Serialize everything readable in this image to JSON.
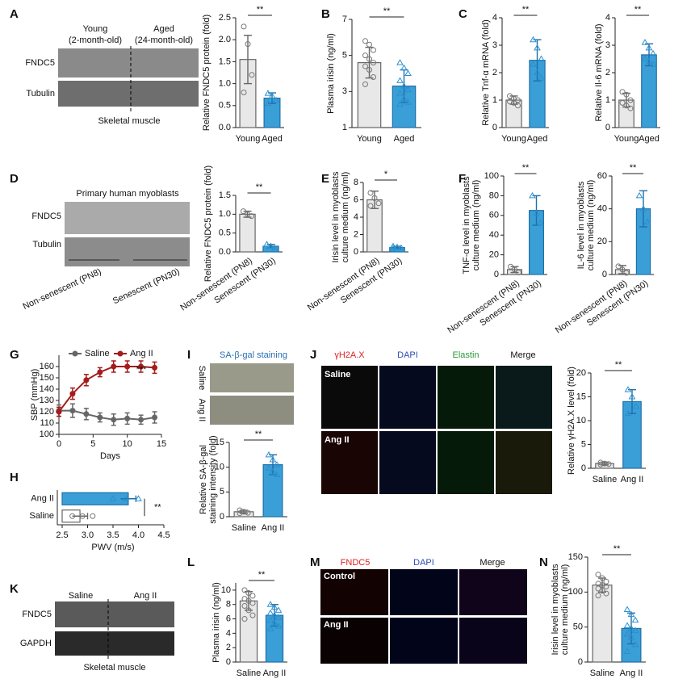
{
  "panel_letters": [
    "A",
    "B",
    "C",
    "D",
    "E",
    "F",
    "G",
    "H",
    "I",
    "J",
    "K",
    "L",
    "M",
    "N"
  ],
  "image_labels": {
    "a": [
      "Young",
      "(2-month-old)",
      "Aged",
      "(24-month-old)",
      "FNDC5",
      "Tubulin",
      "Skeletal muscle"
    ],
    "d": [
      "Primary human myoblasts",
      "FNDC5",
      "Tubulin",
      "Non-senescent (PN8)",
      "Senescent (PN30)"
    ],
    "i": [
      "SA-β-gal staining",
      "Saline",
      "Ang II"
    ],
    "j": [
      "γH2A.X",
      "DAPI",
      "Elastin",
      "Merge",
      "Saline",
      "Ang II"
    ],
    "k": [
      "Saline",
      "Ang II",
      "FNDC5",
      "GAPDH",
      "Skeletal muscle"
    ],
    "m": [
      "FNDC5",
      "DAPI",
      "Merge",
      "Control",
      "Ang II"
    ]
  },
  "chart_data": [
    {
      "type": "bar",
      "ylabel": "Relative FNDC5 protein (fold)",
      "categories": [
        "Young",
        "Aged"
      ],
      "values": [
        1.55,
        0.67
      ],
      "errors": [
        0.55,
        0.12
      ],
      "points": [
        [
          2.3,
          1.9,
          1.2,
          0.8
        ],
        [
          0.78,
          0.72,
          0.62,
          0.55
        ]
      ],
      "colors": [
        "#e8e8e8",
        "#3a9fd6"
      ],
      "ylim": [
        0,
        2.5
      ],
      "yticks": [
        {
          "value": 0,
          "label": "0.0"
        },
        0.5,
        {
          "value": 1,
          "label": "1.0"
        },
        1.5,
        {
          "value": 2,
          "label": "2.0"
        },
        2.5
      ],
      "annotation": "**"
    },
    {
      "type": "bar",
      "ylabel": "Plasma irisin (ng/ml)",
      "categories": [
        "Young",
        "Aged"
      ],
      "values": [
        4.6,
        3.3
      ],
      "errors": [
        0.85,
        0.9
      ],
      "points": [
        [
          5.8,
          5.6,
          5.3,
          5.0,
          4.8,
          4.6,
          4.4,
          4.2,
          3.8,
          3.4
        ],
        [
          4.6,
          4.3,
          4.0,
          3.6,
          3.3,
          3.1,
          2.9,
          2.6,
          2.4,
          2.3
        ]
      ],
      "colors": [
        "#e8e8e8",
        "#3a9fd6"
      ],
      "ylim": [
        1,
        7
      ],
      "yticks": [
        1,
        3,
        5,
        7
      ],
      "annotation": "**"
    },
    {
      "type": "bar",
      "ylabel": "Relative Tnf-α mRNA (fold)",
      "categories": [
        "Young",
        "Aged"
      ],
      "values": [
        1.0,
        2.45
      ],
      "errors": [
        0.15,
        0.75
      ],
      "points": [
        [
          1.15,
          1.05,
          1.0,
          0.95,
          0.9,
          0.8
        ],
        [
          3.2,
          2.9,
          2.5,
          2.3,
          2.0,
          1.8
        ]
      ],
      "colors": [
        "#e8e8e8",
        "#3a9fd6"
      ],
      "ylim": [
        0,
        4
      ],
      "yticks": [
        0,
        1,
        2,
        3,
        4
      ],
      "annotation": "**"
    },
    {
      "type": "bar",
      "ylabel": "Relative Il-6 mRNA (fold)",
      "categories": [
        "Young",
        "Aged"
      ],
      "values": [
        1.0,
        2.65
      ],
      "errors": [
        0.25,
        0.4
      ],
      "points": [
        [
          1.3,
          1.2,
          1.0,
          0.9,
          0.8,
          0.7
        ],
        [
          3.1,
          2.9,
          2.7,
          2.5,
          2.4,
          2.3
        ]
      ],
      "colors": [
        "#e8e8e8",
        "#3a9fd6"
      ],
      "ylim": [
        0,
        4
      ],
      "yticks": [
        0,
        1,
        2,
        3,
        4
      ],
      "annotation": "**"
    },
    {
      "type": "bar",
      "ylabel": "Relative FNDC5 protein (fold)",
      "categories": [
        "Non-senescent (PN8)",
        "Senescent (PN30)"
      ],
      "values": [
        1.0,
        0.15
      ],
      "errors": [
        0.08,
        0.05
      ],
      "points": [
        [
          1.08,
          1.0,
          0.95
        ],
        [
          0.2,
          0.15,
          0.1
        ]
      ],
      "colors": [
        "#e8e8e8",
        "#3a9fd6"
      ],
      "ylim": [
        0,
        1.5
      ],
      "yticks": [
        {
          "value": 0,
          "label": "0.0"
        },
        0.5,
        {
          "value": 1,
          "label": "1.0"
        },
        1.5
      ],
      "annotation": "**"
    },
    {
      "type": "bar",
      "ylabel": [
        "Irisin level in myoblasts",
        "culture medium (ng/ml)"
      ],
      "categories": [
        "Non-senescent (PN8)",
        "Senescent (PN30)"
      ],
      "values": [
        6.0,
        0.5
      ],
      "errors": [
        1.0,
        0.15
      ],
      "points": [
        [
          6.8,
          6.2,
          5.6,
          5.3
        ],
        [
          0.65,
          0.55,
          0.45,
          0.4
        ]
      ],
      "colors": [
        "#e8e8e8",
        "#3a9fd6"
      ],
      "ylim": [
        0,
        8
      ],
      "yticks": [
        0,
        2,
        4,
        6,
        8
      ],
      "annotation": "*"
    },
    {
      "type": "bar",
      "ylabel": [
        "TNF-α level in myoblasts",
        "culture medium (ng/ml)"
      ],
      "categories": [
        "Non-senescent (PN8)",
        "Senescent (PN30)"
      ],
      "values": [
        5,
        65
      ],
      "errors": [
        3,
        15
      ],
      "points": [
        [
          8,
          5,
          2
        ],
        [
          80,
          62,
          52
        ]
      ],
      "colors": [
        "#e8e8e8",
        "#3a9fd6"
      ],
      "ylim": [
        0,
        100
      ],
      "yticks": [
        0,
        20,
        40,
        60,
        80,
        100
      ],
      "annotation": "**"
    },
    {
      "type": "bar",
      "ylabel": [
        "IL-6 level in myoblasts",
        "culture medium (ng/ml)"
      ],
      "categories": [
        "Non-senescent (PN8)",
        "Senescent (PN30)"
      ],
      "values": [
        3,
        40
      ],
      "errors": [
        2.5,
        11
      ],
      "points": [
        [
          5,
          3,
          1
        ],
        [
          48,
          40,
          32
        ]
      ],
      "colors": [
        "#e8e8e8",
        "#3a9fd6"
      ],
      "ylim": [
        0,
        60
      ],
      "yticks": [
        0,
        20,
        40,
        60
      ],
      "annotation": "**"
    },
    {
      "type": "line",
      "ylabel": "SBP (mmHg)",
      "xlabel": "Days",
      "x": [
        0,
        2,
        4,
        6,
        8,
        10,
        12,
        14
      ],
      "series": [
        {
          "name": "Saline",
          "color": "#666666",
          "values": [
            121,
            121,
            118,
            115,
            113,
            114,
            113,
            115
          ],
          "errors": [
            5,
            6,
            5,
            4,
            5,
            5,
            4,
            5
          ]
        },
        {
          "name": "Ang II",
          "color": "#a51c1c",
          "values": [
            120,
            136,
            148,
            155,
            160,
            160,
            160,
            159
          ],
          "errors": [
            4,
            5,
            5,
            4,
            5,
            5,
            5,
            5
          ]
        }
      ],
      "xlim": [
        0,
        15
      ],
      "xticks": [
        0,
        5,
        10,
        15
      ],
      "ylim": [
        100,
        170
      ],
      "yticks": [
        100,
        110,
        120,
        130,
        140,
        150,
        160
      ],
      "annotation": "***"
    },
    {
      "type": "hbar",
      "xlabel": "PWV (m/s)",
      "categories": [
        "Ang II",
        "Saline"
      ],
      "values": [
        3.8,
        2.85
      ],
      "errors": [
        0.15,
        0.15
      ],
      "points": [
        [
          3.5,
          3.75,
          4.0
        ],
        [
          2.7,
          2.9,
          3.1
        ]
      ],
      "colors": [
        "#3a9fd6",
        "#ffffff"
      ],
      "xlim": [
        2.5,
        4.5
      ],
      "xticks": [
        2.5,
        {
          "value": 3,
          "label": "3.0"
        },
        3.5,
        {
          "value": 4,
          "label": "4.0"
        },
        4.5
      ],
      "annotation": "**"
    },
    {
      "type": "bar",
      "ylabel": [
        "Relative SA-β-gal",
        "staining intensity (fold)"
      ],
      "categories": [
        "Saline",
        "Ang II"
      ],
      "values": [
        1.0,
        10.5
      ],
      "errors": [
        0.3,
        2.0
      ],
      "points": [
        [
          1.3,
          1.0,
          0.8,
          0.7
        ],
        [
          12.5,
          11.5,
          10.5,
          9.8,
          9,
          8.5
        ]
      ],
      "colors": [
        "#e8e8e8",
        "#3a9fd6"
      ],
      "ylim": [
        0,
        15
      ],
      "yticks": [
        0,
        5,
        10,
        15
      ],
      "annotation": "**"
    },
    {
      "type": "bar",
      "ylabel": "Relative γH2A.X level (fold)",
      "categories": [
        "Saline",
        "Ang II"
      ],
      "values": [
        1.0,
        14
      ],
      "errors": [
        0.3,
        2.5
      ],
      "points": [
        [
          1.2,
          1.0,
          0.9,
          0.8
        ],
        [
          16.5,
          15,
          13,
          11.5
        ]
      ],
      "colors": [
        "#e8e8e8",
        "#3a9fd6"
      ],
      "ylim": [
        0,
        20
      ],
      "yticks": [
        0,
        5,
        10,
        15,
        20
      ],
      "annotation": "**"
    },
    {
      "type": "bar",
      "ylabel": "Plasma irisin (ng/ml)",
      "categories": [
        "Saline",
        "Ang II"
      ],
      "values": [
        8.5,
        6.5
      ],
      "errors": [
        1.3,
        1.5
      ],
      "points": [
        [
          10,
          9.6,
          9.2,
          8.8,
          8.5,
          8.2,
          7.8,
          7.2,
          6.5,
          6.0
        ],
        [
          8.0,
          7.6,
          7.2,
          6.8,
          6.5,
          6.2,
          5.8,
          5.4,
          5.0,
          4.6
        ]
      ],
      "colors": [
        "#e8e8e8",
        "#3a9fd6"
      ],
      "ylim": [
        0,
        11
      ],
      "yticks": [
        0,
        2,
        4,
        6,
        8,
        10
      ],
      "annotation": "**"
    },
    {
      "type": "bar",
      "ylabel": [
        "Irisin level in myoblasts",
        "culture medium (ng/ml)"
      ],
      "categories": [
        "Saline",
        "Ang II"
      ],
      "values": [
        110,
        48
      ],
      "errors": [
        10,
        22
      ],
      "points": [
        [
          125,
          120,
          115,
          112,
          110,
          108,
          105,
          102,
          98,
          95
        ],
        [
          75,
          68,
          60,
          52,
          48,
          45,
          40,
          35,
          25,
          15
        ]
      ],
      "colors": [
        "#e8e8e8",
        "#3a9fd6"
      ],
      "ylim": [
        0,
        150
      ],
      "yticks": [
        0,
        50,
        100,
        150
      ],
      "annotation": "**"
    }
  ]
}
